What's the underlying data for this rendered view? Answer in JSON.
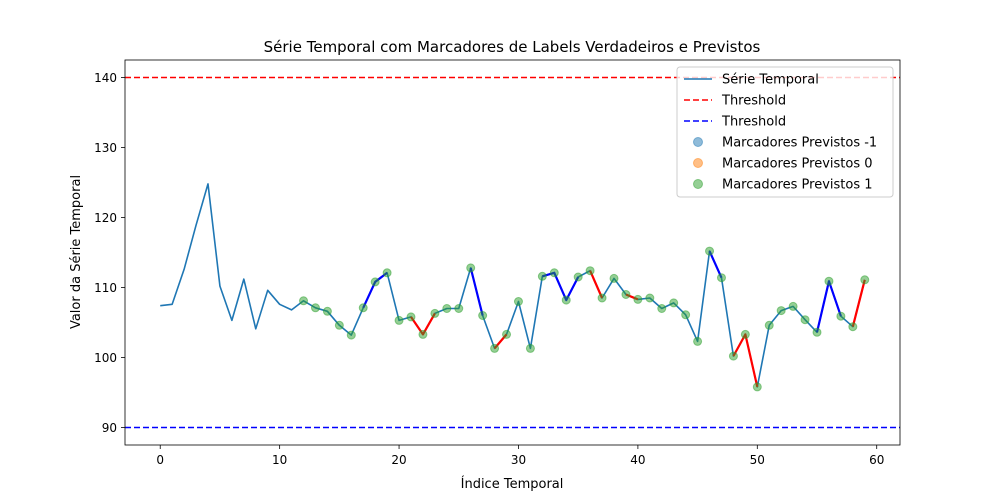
{
  "chart_data": {
    "type": "line",
    "title": "Série Temporal com Marcadores de Labels Verdadeiros e Previstos",
    "xlabel": "Índice Temporal",
    "ylabel": "Valor da Série Temporal",
    "xlim": [
      -2.95,
      61.95
    ],
    "ylim": [
      87.5,
      142.5
    ],
    "xticks": [
      0,
      10,
      20,
      30,
      40,
      50,
      60
    ],
    "yticks": [
      90,
      100,
      110,
      120,
      130,
      140
    ],
    "grid": false,
    "legend_position": "top-right",
    "series": [
      {
        "name": "Série Temporal",
        "color": "#1f77b4",
        "x": [
          0,
          1,
          2,
          3,
          4,
          5,
          6,
          7,
          8,
          9,
          10,
          11,
          12,
          13,
          14,
          15,
          16,
          17,
          18,
          19,
          20,
          21,
          22,
          23,
          24,
          25,
          26,
          27,
          28,
          29,
          30,
          31,
          32,
          33,
          34,
          35,
          36,
          37,
          38,
          39,
          40,
          41,
          42,
          43,
          44,
          45,
          46,
          47,
          48,
          49,
          50,
          51,
          52,
          53,
          54,
          55,
          56,
          57,
          58,
          59
        ],
        "y": [
          107.4,
          107.6,
          112.6,
          118.9,
          124.8,
          110.2,
          105.3,
          111.2,
          104.1,
          109.6,
          107.6,
          106.8,
          108.1,
          107.1,
          106.6,
          104.6,
          103.2,
          107.1,
          110.8,
          112.1,
          105.3,
          105.8,
          103.3,
          106.3,
          107.0,
          107.0,
          112.8,
          106.0,
          101.3,
          103.3,
          108.0,
          101.3,
          111.6,
          112.1,
          108.2,
          111.5,
          112.4,
          108.5,
          111.3,
          109.0,
          108.3,
          108.5,
          107.0,
          107.8,
          106.1,
          102.3,
          115.2,
          111.4,
          100.2,
          103.3,
          95.8,
          104.6,
          106.7,
          107.3,
          105.4,
          103.6,
          110.9,
          105.9,
          104.4,
          111.1
        ]
      }
    ],
    "thresholds": [
      {
        "name": "Threshold",
        "y": 140,
        "color": "#ff0000"
      },
      {
        "name": "Threshold",
        "y": 90,
        "color": "#0000ff"
      }
    ],
    "marker_series": [
      {
        "name": "Marcadores Previstos -1",
        "color": "#1f77b4",
        "x": []
      },
      {
        "name": "Marcadores Previstos 0",
        "color": "#ff7f0e",
        "x": []
      },
      {
        "name": "Marcadores Previstos 1",
        "color": "#2ca02c",
        "x": [
          12,
          13,
          14,
          15,
          16,
          17,
          18,
          19,
          20,
          21,
          22,
          23,
          24,
          25,
          26,
          27,
          28,
          29,
          30,
          31,
          32,
          33,
          34,
          35,
          36,
          37,
          38,
          39,
          40,
          41,
          42,
          43,
          44,
          45,
          46,
          47,
          48,
          49,
          50,
          51,
          52,
          53,
          54,
          55,
          56,
          57,
          58,
          59
        ]
      }
    ],
    "highlight_segments": [
      {
        "color": "#0000ff",
        "from": 17,
        "to": 19
      },
      {
        "color": "#ff0000",
        "from": 21,
        "to": 23
      },
      {
        "color": "#0000ff",
        "from": 26,
        "to": 27
      },
      {
        "color": "#ff0000",
        "from": 28,
        "to": 29
      },
      {
        "color": "#0000ff",
        "from": 32,
        "to": 35
      },
      {
        "color": "#ff0000",
        "from": 36,
        "to": 37
      },
      {
        "color": "#ff0000",
        "from": 39,
        "to": 40
      },
      {
        "color": "#0000ff",
        "from": 46,
        "to": 47
      },
      {
        "color": "#ff0000",
        "from": 48,
        "to": 50
      },
      {
        "color": "#0000ff",
        "from": 55,
        "to": 57
      },
      {
        "color": "#ff0000",
        "from": 58,
        "to": 59
      }
    ]
  }
}
